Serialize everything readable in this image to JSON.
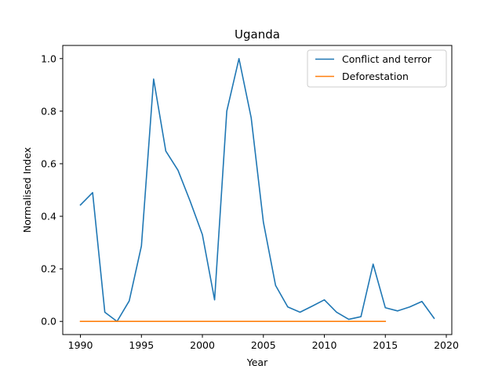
{
  "chart_data": {
    "type": "line",
    "title": "Uganda",
    "xlabel": "Year",
    "ylabel": "Normalised Index",
    "xlim": [
      1988.55,
      2020.45
    ],
    "ylim": [
      -0.05,
      1.05
    ],
    "x_ticks": [
      1990,
      1995,
      2000,
      2005,
      2010,
      2015,
      2020
    ],
    "y_ticks": [
      0.0,
      0.2,
      0.4,
      0.6,
      0.8,
      1.0
    ],
    "x_tick_labels": [
      "1990",
      "1995",
      "2000",
      "2005",
      "2010",
      "2015",
      "2020"
    ],
    "y_tick_labels": [
      "0.0",
      "0.2",
      "0.4",
      "0.6",
      "0.8",
      "1.0"
    ],
    "grid": false,
    "legend_position": "top-right",
    "series": [
      {
        "name": "Conflict and terror",
        "color": "#1f77b4",
        "x": [
          1990,
          1991,
          1992,
          1993,
          1994,
          1995,
          1996,
          1997,
          1998,
          1999,
          2000,
          2001,
          2002,
          2003,
          2004,
          2005,
          2006,
          2007,
          2008,
          2009,
          2010,
          2011,
          2012,
          2013,
          2014,
          2015,
          2016,
          2017,
          2018,
          2019
        ],
        "values": [
          0.443,
          0.49,
          0.035,
          0.0,
          0.078,
          0.287,
          0.922,
          0.648,
          0.575,
          0.457,
          0.33,
          0.082,
          0.8,
          1.0,
          0.775,
          0.378,
          0.137,
          0.055,
          0.035,
          0.058,
          0.082,
          0.035,
          0.008,
          0.018,
          0.218,
          0.052,
          0.04,
          0.055,
          0.076,
          0.012
        ]
      },
      {
        "name": "Deforestation",
        "color": "#ff7f0e",
        "x": [
          1990,
          1991,
          1992,
          1993,
          1994,
          1995,
          1996,
          1997,
          1998,
          1999,
          2000,
          2001,
          2002,
          2003,
          2004,
          2005,
          2006,
          2007,
          2008,
          2009,
          2010,
          2011,
          2012,
          2013,
          2014,
          2015
        ],
        "values": [
          0,
          0,
          0,
          0,
          0,
          0,
          0,
          0,
          0,
          0,
          0,
          0,
          0,
          0,
          0,
          0,
          0,
          0,
          0,
          0,
          0,
          0,
          0,
          0,
          0,
          0
        ]
      }
    ]
  }
}
